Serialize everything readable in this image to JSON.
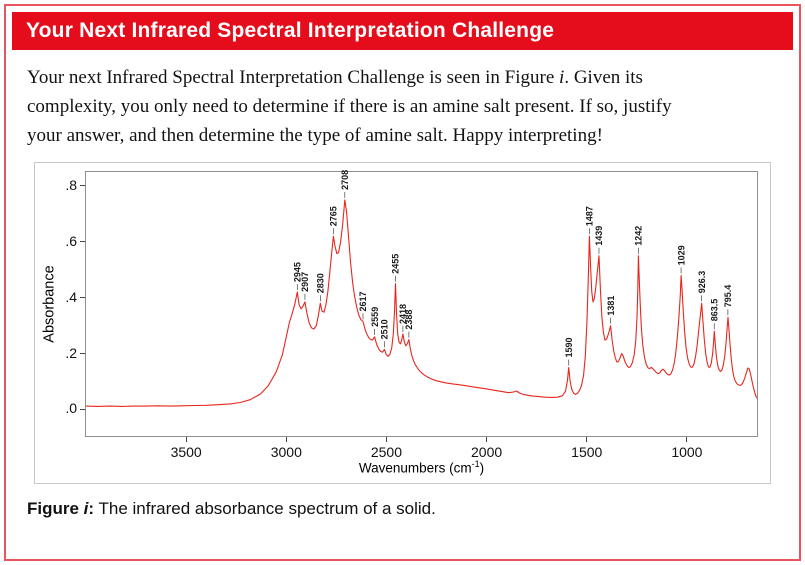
{
  "header": {
    "title": "Your Next Infrared Spectral Interpretation Challenge"
  },
  "intro": {
    "line1_before": "Your next Infrared Spectral Interpretation Challenge is seen in Figure ",
    "line1_italic": "i",
    "line1_after": ". Given its",
    "line2": "complexity, you only need to determine if there is an amine salt present. If so, justify",
    "line3": "your answer, and then determine the type of amine salt. Happy interpreting!"
  },
  "figure_caption": {
    "bold_prefix": "Figure ",
    "bold_italic": "i",
    "bold_suffix": ":",
    "text": " The infrared absorbance spectrum of a solid."
  },
  "colors": {
    "header_bg": "#e50d1b",
    "card_border": "#e9545f",
    "spectrum_line": "#e8261d",
    "plot_border": "#8f8f8f"
  },
  "chart_data": {
    "type": "line",
    "title": "",
    "xlabel": "Wavenumbers (cm-1)",
    "xlabel_parts": {
      "main": "Wavenumbers (cm",
      "sup": "-1",
      "close": ")"
    },
    "ylabel": "Absorbance",
    "xlim": [
      4000,
      650
    ],
    "x_reversed": true,
    "ylim": [
      -0.095,
      0.85
    ],
    "grid": false,
    "legend": false,
    "line_color": "#e8261d",
    "x_ticks": [
      3500,
      3000,
      2500,
      2000,
      1500,
      1000
    ],
    "y_ticks": [
      {
        "value": 0.8,
        "label": ".8"
      },
      {
        "value": 0.6,
        "label": ".6"
      },
      {
        "value": 0.4,
        "label": ".4"
      },
      {
        "value": 0.2,
        "label": ".2"
      },
      {
        "value": 0.0,
        "label": ".0"
      }
    ],
    "peak_labels": [
      {
        "x": 2945,
        "y": 0.42,
        "label": "2945"
      },
      {
        "x": 2907,
        "y": 0.385,
        "label": "2907"
      },
      {
        "x": 2830,
        "y": 0.38,
        "label": "2830"
      },
      {
        "x": 2765,
        "y": 0.62,
        "label": "2765"
      },
      {
        "x": 2708,
        "y": 0.75,
        "label": "2708"
      },
      {
        "x": 2617,
        "y": 0.315,
        "label": "2617"
      },
      {
        "x": 2559,
        "y": 0.26,
        "label": "2559"
      },
      {
        "x": 2510,
        "y": 0.215,
        "label": "2510"
      },
      {
        "x": 2455,
        "y": 0.45,
        "label": "2455"
      },
      {
        "x": 2418,
        "y": 0.27,
        "label": "2418"
      },
      {
        "x": 2388,
        "y": 0.25,
        "label": "2388"
      },
      {
        "x": 1590,
        "y": 0.15,
        "label": "1590"
      },
      {
        "x": 1487,
        "y": 0.62,
        "label": "1487"
      },
      {
        "x": 1439,
        "y": 0.55,
        "label": "1439"
      },
      {
        "x": 1381,
        "y": 0.3,
        "label": "1381"
      },
      {
        "x": 1242,
        "y": 0.55,
        "label": "1242"
      },
      {
        "x": 1029,
        "y": 0.48,
        "label": "1029"
      },
      {
        "x": 926.3,
        "y": 0.38,
        "label": "926.3"
      },
      {
        "x": 863.5,
        "y": 0.28,
        "label": "863.5"
      },
      {
        "x": 795.4,
        "y": 0.33,
        "label": "795.4"
      }
    ],
    "points": [
      [
        4000,
        0.012
      ],
      [
        3940,
        0.011
      ],
      [
        3880,
        0.012
      ],
      [
        3820,
        0.011
      ],
      [
        3760,
        0.012
      ],
      [
        3700,
        0.012
      ],
      [
        3640,
        0.013
      ],
      [
        3580,
        0.012
      ],
      [
        3520,
        0.013
      ],
      [
        3460,
        0.014
      ],
      [
        3400,
        0.015
      ],
      [
        3340,
        0.017
      ],
      [
        3280,
        0.02
      ],
      [
        3230,
        0.025
      ],
      [
        3180,
        0.035
      ],
      [
        3130,
        0.055
      ],
      [
        3090,
        0.085
      ],
      [
        3050,
        0.135
      ],
      [
        3020,
        0.195
      ],
      [
        3000,
        0.26
      ],
      [
        2985,
        0.31
      ],
      [
        2970,
        0.345
      ],
      [
        2958,
        0.375
      ],
      [
        2945,
        0.42
      ],
      [
        2936,
        0.375
      ],
      [
        2926,
        0.36
      ],
      [
        2916,
        0.37
      ],
      [
        2907,
        0.385
      ],
      [
        2897,
        0.345
      ],
      [
        2886,
        0.31
      ],
      [
        2874,
        0.292
      ],
      [
        2862,
        0.288
      ],
      [
        2850,
        0.3
      ],
      [
        2840,
        0.335
      ],
      [
        2830,
        0.38
      ],
      [
        2822,
        0.352
      ],
      [
        2812,
        0.348
      ],
      [
        2803,
        0.372
      ],
      [
        2793,
        0.42
      ],
      [
        2783,
        0.49
      ],
      [
        2773,
        0.565
      ],
      [
        2765,
        0.62
      ],
      [
        2757,
        0.585
      ],
      [
        2748,
        0.558
      ],
      [
        2739,
        0.562
      ],
      [
        2729,
        0.6
      ],
      [
        2719,
        0.66
      ],
      [
        2708,
        0.75
      ],
      [
        2699,
        0.705
      ],
      [
        2689,
        0.615
      ],
      [
        2679,
        0.525
      ],
      [
        2669,
        0.455
      ],
      [
        2659,
        0.405
      ],
      [
        2649,
        0.368
      ],
      [
        2639,
        0.34
      ],
      [
        2628,
        0.322
      ],
      [
        2617,
        0.315
      ],
      [
        2608,
        0.29
      ],
      [
        2599,
        0.272
      ],
      [
        2589,
        0.258
      ],
      [
        2579,
        0.25
      ],
      [
        2569,
        0.249
      ],
      [
        2559,
        0.26
      ],
      [
        2549,
        0.234
      ],
      [
        2539,
        0.217
      ],
      [
        2529,
        0.208
      ],
      [
        2519,
        0.205
      ],
      [
        2510,
        0.215
      ],
      [
        2501,
        0.197
      ],
      [
        2492,
        0.19
      ],
      [
        2483,
        0.197
      ],
      [
        2474,
        0.22
      ],
      [
        2466,
        0.27
      ],
      [
        2460,
        0.35
      ],
      [
        2455,
        0.45
      ],
      [
        2450,
        0.345
      ],
      [
        2444,
        0.27
      ],
      [
        2437,
        0.24
      ],
      [
        2430,
        0.235
      ],
      [
        2424,
        0.248
      ],
      [
        2418,
        0.27
      ],
      [
        2411,
        0.243
      ],
      [
        2404,
        0.228
      ],
      [
        2396,
        0.235
      ],
      [
        2388,
        0.25
      ],
      [
        2381,
        0.217
      ],
      [
        2373,
        0.192
      ],
      [
        2364,
        0.173
      ],
      [
        2354,
        0.158
      ],
      [
        2342,
        0.145
      ],
      [
        2328,
        0.133
      ],
      [
        2312,
        0.124
      ],
      [
        2294,
        0.116
      ],
      [
        2274,
        0.109
      ],
      [
        2252,
        0.103
      ],
      [
        2228,
        0.099
      ],
      [
        2202,
        0.095
      ],
      [
        2174,
        0.092
      ],
      [
        2144,
        0.089
      ],
      [
        2112,
        0.086
      ],
      [
        2078,
        0.082
      ],
      [
        2042,
        0.078
      ],
      [
        2004,
        0.074
      ],
      [
        1964,
        0.069
      ],
      [
        1922,
        0.064
      ],
      [
        1890,
        0.06
      ],
      [
        1868,
        0.062
      ],
      [
        1850,
        0.066
      ],
      [
        1836,
        0.059
      ],
      [
        1818,
        0.054
      ],
      [
        1796,
        0.051
      ],
      [
        1770,
        0.048
      ],
      [
        1740,
        0.046
      ],
      [
        1708,
        0.044
      ],
      [
        1676,
        0.043
      ],
      [
        1646,
        0.044
      ],
      [
        1622,
        0.049
      ],
      [
        1606,
        0.065
      ],
      [
        1596,
        0.105
      ],
      [
        1590,
        0.15
      ],
      [
        1583,
        0.102
      ],
      [
        1575,
        0.073
      ],
      [
        1566,
        0.059
      ],
      [
        1556,
        0.054
      ],
      [
        1546,
        0.058
      ],
      [
        1536,
        0.068
      ],
      [
        1526,
        0.086
      ],
      [
        1516,
        0.12
      ],
      [
        1507,
        0.19
      ],
      [
        1499,
        0.31
      ],
      [
        1492,
        0.47
      ],
      [
        1487,
        0.62
      ],
      [
        1481,
        0.51
      ],
      [
        1475,
        0.42
      ],
      [
        1469,
        0.385
      ],
      [
        1462,
        0.398
      ],
      [
        1455,
        0.438
      ],
      [
        1447,
        0.495
      ],
      [
        1439,
        0.55
      ],
      [
        1432,
        0.43
      ],
      [
        1425,
        0.335
      ],
      [
        1417,
        0.276
      ],
      [
        1409,
        0.248
      ],
      [
        1401,
        0.252
      ],
      [
        1393,
        0.268
      ],
      [
        1387,
        0.283
      ],
      [
        1381,
        0.3
      ],
      [
        1374,
        0.252
      ],
      [
        1366,
        0.212
      ],
      [
        1358,
        0.186
      ],
      [
        1350,
        0.17
      ],
      [
        1342,
        0.171
      ],
      [
        1334,
        0.184
      ],
      [
        1326,
        0.2
      ],
      [
        1318,
        0.191
      ],
      [
        1310,
        0.173
      ],
      [
        1300,
        0.158
      ],
      [
        1290,
        0.15
      ],
      [
        1281,
        0.154
      ],
      [
        1272,
        0.168
      ],
      [
        1263,
        0.196
      ],
      [
        1255,
        0.248
      ],
      [
        1249,
        0.33
      ],
      [
        1245,
        0.43
      ],
      [
        1242,
        0.55
      ],
      [
        1238,
        0.47
      ],
      [
        1233,
        0.38
      ],
      [
        1227,
        0.29
      ],
      [
        1220,
        0.23
      ],
      [
        1212,
        0.188
      ],
      [
        1203,
        0.162
      ],
      [
        1194,
        0.149
      ],
      [
        1186,
        0.146
      ],
      [
        1178,
        0.151
      ],
      [
        1170,
        0.146
      ],
      [
        1161,
        0.139
      ],
      [
        1152,
        0.132
      ],
      [
        1144,
        0.128
      ],
      [
        1136,
        0.131
      ],
      [
        1128,
        0.139
      ],
      [
        1120,
        0.144
      ],
      [
        1112,
        0.139
      ],
      [
        1104,
        0.131
      ],
      [
        1096,
        0.125
      ],
      [
        1088,
        0.123
      ],
      [
        1080,
        0.128
      ],
      [
        1072,
        0.141
      ],
      [
        1064,
        0.163
      ],
      [
        1056,
        0.2
      ],
      [
        1048,
        0.256
      ],
      [
        1040,
        0.33
      ],
      [
        1033,
        0.41
      ],
      [
        1029,
        0.48
      ],
      [
        1024,
        0.425
      ],
      [
        1018,
        0.35
      ],
      [
        1011,
        0.275
      ],
      [
        1004,
        0.221
      ],
      [
        997,
        0.186
      ],
      [
        989,
        0.163
      ],
      [
        981,
        0.152
      ],
      [
        973,
        0.151
      ],
      [
        965,
        0.162
      ],
      [
        957,
        0.188
      ],
      [
        949,
        0.228
      ],
      [
        941,
        0.283
      ],
      [
        933,
        0.335
      ],
      [
        926,
        0.38
      ],
      [
        920,
        0.317
      ],
      [
        913,
        0.25
      ],
      [
        906,
        0.2
      ],
      [
        899,
        0.169
      ],
      [
        892,
        0.152
      ],
      [
        885,
        0.151
      ],
      [
        878,
        0.166
      ],
      [
        871,
        0.202
      ],
      [
        866,
        0.245
      ],
      [
        863,
        0.28
      ],
      [
        858,
        0.232
      ],
      [
        852,
        0.186
      ],
      [
        846,
        0.158
      ],
      [
        839,
        0.142
      ],
      [
        832,
        0.136
      ],
      [
        825,
        0.141
      ],
      [
        818,
        0.158
      ],
      [
        811,
        0.192
      ],
      [
        804,
        0.245
      ],
      [
        799,
        0.295
      ],
      [
        795,
        0.33
      ],
      [
        790,
        0.285
      ],
      [
        784,
        0.225
      ],
      [
        778,
        0.176
      ],
      [
        772,
        0.141
      ],
      [
        766,
        0.118
      ],
      [
        759,
        0.102
      ],
      [
        751,
        0.093
      ],
      [
        743,
        0.088
      ],
      [
        735,
        0.086
      ],
      [
        727,
        0.089
      ],
      [
        719,
        0.098
      ],
      [
        711,
        0.113
      ],
      [
        703,
        0.132
      ],
      [
        696,
        0.148
      ],
      [
        690,
        0.147
      ],
      [
        683,
        0.13
      ],
      [
        676,
        0.105
      ],
      [
        669,
        0.082
      ],
      [
        662,
        0.062
      ],
      [
        655,
        0.047
      ],
      [
        650,
        0.04
      ]
    ]
  }
}
